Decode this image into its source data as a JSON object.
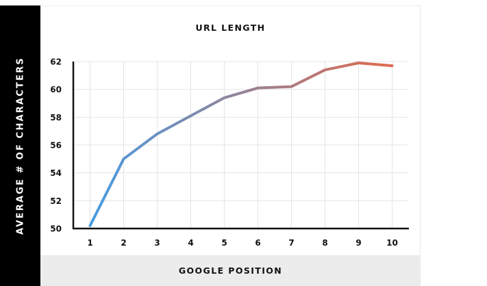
{
  "chart_data": {
    "type": "line",
    "title": "URL LENGTH",
    "xlabel": "GOOGLE POSITION",
    "ylabel": "AVERAGE # OF CHARACTERS",
    "x": [
      1,
      2,
      3,
      4,
      5,
      6,
      7,
      8,
      9,
      10
    ],
    "y": [
      50.2,
      55.0,
      56.8,
      58.1,
      59.4,
      60.1,
      60.2,
      61.4,
      61.9,
      61.7
    ],
    "x_ticks": [
      "1",
      "2",
      "3",
      "4",
      "5",
      "6",
      "7",
      "8",
      "9",
      "10"
    ],
    "y_ticks": [
      "50",
      "52",
      "54",
      "56",
      "58",
      "60",
      "62"
    ],
    "xlim": [
      0.5,
      10.5
    ],
    "ylim": [
      50,
      62
    ],
    "grid": true,
    "legend": "none",
    "line_gradient": [
      "#4a9be0",
      "#e06a4e"
    ],
    "colors": {
      "ylabel_band": "#000000",
      "xlabel_band": "#ececec",
      "grid": "#e4e4e4",
      "axis": "#111111"
    }
  }
}
